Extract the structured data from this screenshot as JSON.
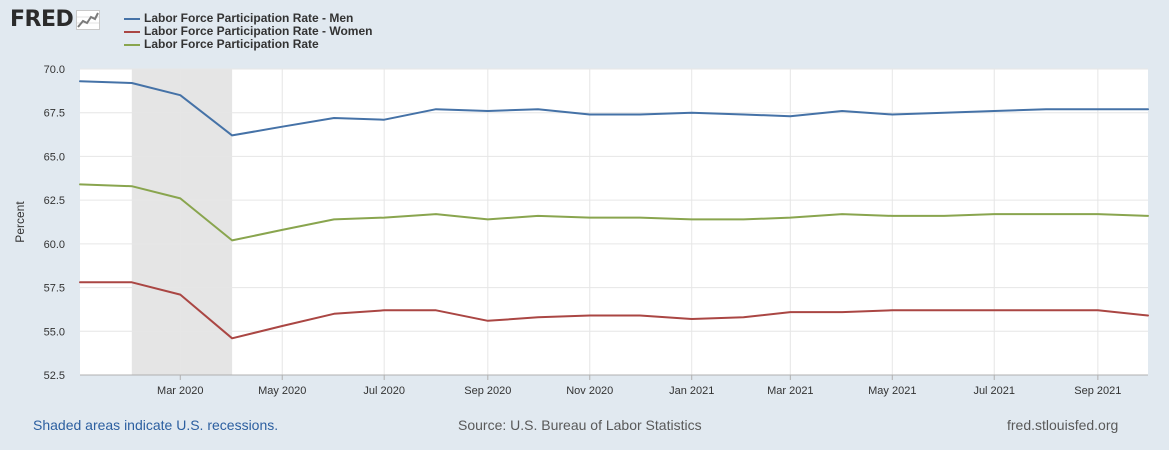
{
  "header": {
    "logo_text": "FRED",
    "logo_icon": "trend-graph-icon"
  },
  "chart_data": {
    "type": "line",
    "title": "",
    "xlabel": "",
    "ylabel": "Percent",
    "ylim": [
      52.5,
      70.0
    ],
    "yticks": [
      "52.5",
      "55.0",
      "57.5",
      "60.0",
      "62.5",
      "65.0",
      "67.5",
      "70.0"
    ],
    "xticks": [
      "Mar 2020",
      "May 2020",
      "Jul 2020",
      "Sep 2020",
      "Nov 2020",
      "Jan 2021",
      "Mar 2021",
      "May 2021",
      "Jul 2021",
      "Sep 2021"
    ],
    "x": [
      "2020-01-01",
      "2020-02-01",
      "2020-03-01",
      "2020-04-01",
      "2020-05-01",
      "2020-06-01",
      "2020-07-01",
      "2020-08-01",
      "2020-09-01",
      "2020-10-01",
      "2020-11-01",
      "2020-12-01",
      "2021-01-01",
      "2021-02-01",
      "2021-03-01",
      "2021-04-01",
      "2021-05-01",
      "2021-06-01",
      "2021-07-01",
      "2021-08-01",
      "2021-09-01",
      "2021-10-01"
    ],
    "grid": true,
    "legend_position": "top-left",
    "recession": {
      "start": "2020-02-01",
      "end": "2020-04-01",
      "color": "#e5e5e5"
    },
    "series": [
      {
        "name": "Labor Force Participation Rate - Men",
        "color": "#4572a7",
        "values": [
          69.3,
          69.2,
          68.5,
          66.2,
          66.7,
          67.2,
          67.1,
          67.7,
          67.6,
          67.7,
          67.4,
          67.4,
          67.5,
          67.4,
          67.3,
          67.6,
          67.4,
          67.5,
          67.6,
          67.7,
          67.7,
          67.7
        ]
      },
      {
        "name": "Labor Force Participation Rate - Women",
        "color": "#aa4643",
        "values": [
          57.8,
          57.8,
          57.1,
          54.6,
          55.3,
          56.0,
          56.2,
          56.2,
          55.6,
          55.8,
          55.9,
          55.9,
          55.7,
          55.8,
          56.1,
          56.1,
          56.2,
          56.2,
          56.2,
          56.2,
          56.2,
          55.9
        ]
      },
      {
        "name": "Labor Force Participation Rate",
        "color": "#89a54e",
        "values": [
          63.4,
          63.3,
          62.6,
          60.2,
          60.8,
          61.4,
          61.5,
          61.7,
          61.4,
          61.6,
          61.5,
          61.5,
          61.4,
          61.4,
          61.5,
          61.7,
          61.6,
          61.6,
          61.7,
          61.7,
          61.7,
          61.6
        ]
      }
    ]
  },
  "footer": {
    "recession_note": "Shaded areas indicate U.S. recessions.",
    "source": "Source: U.S. Bureau of Labor Statistics",
    "site": "fred.stlouisfed.org"
  }
}
